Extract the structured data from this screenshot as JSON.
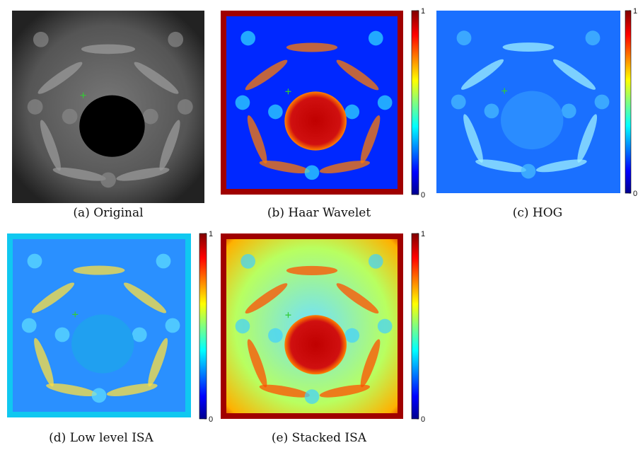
{
  "panels": [
    {
      "caption": "(a) Original"
    },
    {
      "caption": "(b) Haar Wavelet",
      "colorbar": {
        "ticks": [
          0,
          1
        ]
      }
    },
    {
      "caption": "(c) HOG",
      "colorbar": {
        "ticks": [
          0,
          1
        ]
      }
    },
    {
      "caption": "(d) Low level ISA",
      "colorbar": {
        "ticks": [
          0,
          1
        ]
      }
    },
    {
      "caption": "(e) Stacked ISA",
      "colorbar": {
        "ticks": [
          0,
          1
        ]
      }
    }
  ]
}
